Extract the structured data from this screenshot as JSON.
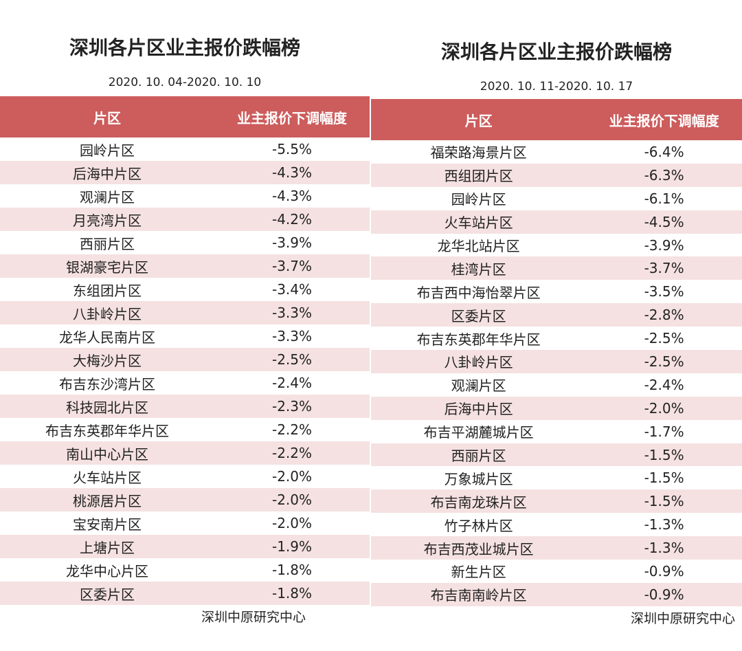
{
  "left": {
    "title": "深圳各片区业主报价跌幅榜",
    "date_range": "2020. 10. 04-2020. 10. 10",
    "header": {
      "district": "片区",
      "change": "业主报价下调幅度"
    },
    "rows": [
      {
        "district": "园岭片区",
        "change": "-5.5%"
      },
      {
        "district": "后海中片区",
        "change": "-4.3%"
      },
      {
        "district": "观澜片区",
        "change": "-4.3%"
      },
      {
        "district": "月亮湾片区",
        "change": "-4.2%"
      },
      {
        "district": "西丽片区",
        "change": "-3.9%"
      },
      {
        "district": "银湖豪宅片区",
        "change": "-3.7%"
      },
      {
        "district": "东组团片区",
        "change": "-3.4%"
      },
      {
        "district": "八卦岭片区",
        "change": "-3.3%"
      },
      {
        "district": "龙华人民南片区",
        "change": "-3.3%"
      },
      {
        "district": "大梅沙片区",
        "change": "-2.5%"
      },
      {
        "district": "布吉东沙湾片区",
        "change": "-2.4%"
      },
      {
        "district": "科技园北片区",
        "change": "-2.3%"
      },
      {
        "district": "布吉东英郡年华片区",
        "change": "-2.2%"
      },
      {
        "district": "南山中心片区",
        "change": "-2.2%"
      },
      {
        "district": "火车站片区",
        "change": "-2.0%"
      },
      {
        "district": "桃源居片区",
        "change": "-2.0%"
      },
      {
        "district": "宝安南片区",
        "change": "-2.0%"
      },
      {
        "district": "上塘片区",
        "change": "-1.9%"
      },
      {
        "district": "龙华中心片区",
        "change": "-1.8%"
      },
      {
        "district": "区委片区",
        "change": "-1.8%"
      }
    ],
    "source": "深圳中原研究中心"
  },
  "right": {
    "title": "深圳各片区业主报价跌幅榜",
    "date_range": "2020. 10. 11-2020. 10. 17",
    "header": {
      "district": "片区",
      "change": "业主报价下调幅度"
    },
    "rows": [
      {
        "district": "福荣路海景片区",
        "change": "-6.4%"
      },
      {
        "district": "西组团片区",
        "change": "-6.3%"
      },
      {
        "district": "园岭片区",
        "change": "-6.1%"
      },
      {
        "district": "火车站片区",
        "change": "-4.5%"
      },
      {
        "district": "龙华北站片区",
        "change": "-3.9%"
      },
      {
        "district": "桂湾片区",
        "change": "-3.7%"
      },
      {
        "district": "布吉西中海怡翠片区",
        "change": "-3.5%"
      },
      {
        "district": "区委片区",
        "change": "-2.8%"
      },
      {
        "district": "布吉东英郡年华片区",
        "change": "-2.5%"
      },
      {
        "district": "八卦岭片区",
        "change": "-2.5%"
      },
      {
        "district": "观澜片区",
        "change": "-2.4%"
      },
      {
        "district": "后海中片区",
        "change": "-2.0%"
      },
      {
        "district": "布吉平湖麓城片区",
        "change": "-1.7%"
      },
      {
        "district": "西丽片区",
        "change": "-1.5%"
      },
      {
        "district": "万象城片区",
        "change": "-1.5%"
      },
      {
        "district": "布吉南龙珠片区",
        "change": "-1.5%"
      },
      {
        "district": "竹子林片区",
        "change": "-1.3%"
      },
      {
        "district": "布吉西茂业城片区",
        "change": "-1.3%"
      },
      {
        "district": "新生片区",
        "change": "-0.9%"
      },
      {
        "district": "布吉南南岭片区",
        "change": "-0.9%"
      }
    ],
    "source": "深圳中原研究中心"
  },
  "colors": {
    "header_bg": "#cd5c5c",
    "row_shade": "#f5e1e1"
  }
}
